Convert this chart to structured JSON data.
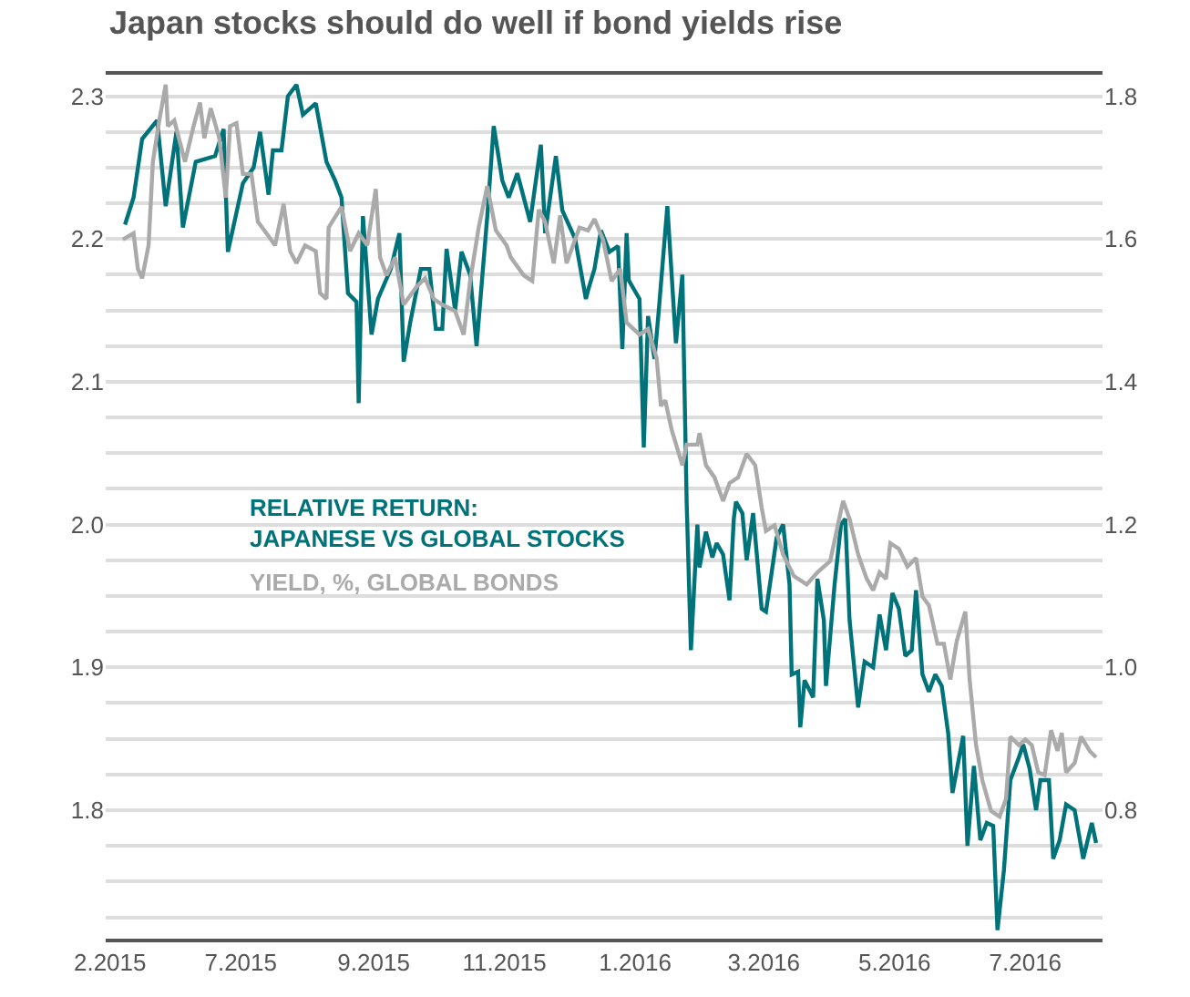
{
  "chart_data": {
    "type": "line",
    "title": "Japan stocks should do well if bond yields rise",
    "xlim": [
      "2015-04-29",
      "2016-08-06"
    ],
    "xticks": [
      {
        "value": "2015-05-01",
        "label": "2.2015"
      },
      {
        "value": "2015-07-01",
        "label": "7.2015"
      },
      {
        "value": "2015-09-01",
        "label": "9.2015"
      },
      {
        "value": "2015-11-01",
        "label": "11.2015"
      },
      {
        "value": "2016-01-01",
        "label": "1.2016"
      },
      {
        "value": "2016-03-01",
        "label": "3.2016"
      },
      {
        "value": "2016-05-01",
        "label": "5.2016"
      },
      {
        "value": "2016-07-01",
        "label": "7.2016"
      }
    ],
    "ylim": [
      1.71,
      2.315
    ],
    "yticks": [
      {
        "value": 1.725,
        "label": null
      },
      {
        "value": 1.75,
        "label": null
      },
      {
        "value": 1.775,
        "label": null
      },
      1.8,
      {
        "value": 1.825,
        "label": null
      },
      {
        "value": 1.85,
        "label": null
      },
      {
        "value": 1.875,
        "label": null
      },
      1.9,
      {
        "value": 1.925,
        "label": null
      },
      {
        "value": 1.95,
        "label": null
      },
      {
        "value": 1.975,
        "label": null
      },
      {
        "value": 2,
        "label": "2.0"
      },
      {
        "value": 2.025,
        "label": null
      },
      {
        "value": 2.05,
        "label": null
      },
      {
        "value": 2.075,
        "label": null
      },
      2.1,
      {
        "value": 2.125,
        "label": null
      },
      {
        "value": 2.15,
        "label": null
      },
      {
        "value": 2.175,
        "label": null
      },
      2.2,
      {
        "value": 2.225,
        "label": null
      },
      {
        "value": 2.25,
        "label": null
      },
      {
        "value": 2.275,
        "label": null
      },
      2.3
    ],
    "y2lim": [
      0.62,
      1.83
    ],
    "y2ticks": [
      0.8,
      {
        "value": 1,
        "label": "1.0"
      },
      1.2,
      1.4,
      1.6,
      1.8
    ],
    "grid": "y",
    "legend": false,
    "marker": "none",
    "line_style": "solid",
    "series": [
      {
        "name": "RELATIVE RETURN:\nJAPANESE VS GLOBAL STOCKS",
        "color": "#00737a",
        "x": [
          "2015-05-08",
          "2015-05-12",
          "2015-05-16",
          "2015-05-23",
          "2015-05-27",
          "2015-06-01",
          "2015-06-04",
          "2015-06-10",
          "2015-06-19",
          "2015-06-23",
          "2015-06-25",
          "2015-07-02",
          "2015-07-07",
          "2015-07-10",
          "2015-07-14",
          "2015-07-16",
          "2015-07-20",
          "2015-07-23",
          "2015-07-27",
          "2015-07-30",
          "2015-08-05",
          "2015-08-10",
          "2015-08-14",
          "2015-08-17",
          "2015-08-20",
          "2015-08-24",
          "2015-08-25",
          "2015-08-27",
          "2015-08-31",
          "2015-09-03",
          "2015-09-09",
          "2015-09-13",
          "2015-09-15",
          "2015-09-18",
          "2015-09-23",
          "2015-09-27",
          "2015-09-30",
          "2015-10-03",
          "2015-10-05",
          "2015-10-09",
          "2015-10-12",
          "2015-10-16",
          "2015-10-19",
          "2015-10-24",
          "2015-10-27",
          "2015-10-31",
          "2015-11-03",
          "2015-11-07",
          "2015-11-13",
          "2015-11-18",
          "2015-11-20",
          "2015-11-25",
          "2015-11-28",
          "2015-12-04",
          "2015-12-09",
          "2015-12-10",
          "2015-12-13",
          "2015-12-16",
          "2015-12-20",
          "2015-12-24",
          "2015-12-26",
          "2015-12-28",
          "2015-12-29",
          "2016-01-03",
          "2016-01-05",
          "2016-01-07",
          "2016-01-10",
          "2016-01-12",
          "2016-01-16",
          "2016-01-20",
          "2016-01-23",
          "2016-01-25",
          "2016-01-27",
          "2016-01-30",
          "2016-01-31",
          "2016-02-03",
          "2016-02-06",
          "2016-02-08",
          "2016-02-11",
          "2016-02-14",
          "2016-02-16",
          "2016-02-17",
          "2016-02-20",
          "2016-02-22",
          "2016-02-25",
          "2016-02-29",
          "2016-03-02",
          "2016-03-05",
          "2016-03-07",
          "2016-03-10",
          "2016-03-13",
          "2016-03-14",
          "2016-03-17",
          "2016-03-18",
          "2016-03-20",
          "2016-03-24",
          "2016-03-26",
          "2016-03-29",
          "2016-03-30",
          "2016-04-03",
          "2016-04-06",
          "2016-04-08",
          "2016-04-10",
          "2016-04-14",
          "2016-04-17",
          "2016-04-21",
          "2016-04-24",
          "2016-04-27",
          "2016-04-30",
          "2016-05-03",
          "2016-05-06",
          "2016-05-09",
          "2016-05-11",
          "2016-05-14",
          "2016-05-17",
          "2016-05-20",
          "2016-05-23",
          "2016-05-26",
          "2016-05-28",
          "2016-06-02",
          "2016-06-04",
          "2016-06-07",
          "2016-06-10",
          "2016-06-13",
          "2016-06-16",
          "2016-06-18",
          "2016-06-21",
          "2016-06-24",
          "2016-06-28",
          "2016-06-30",
          "2016-07-03",
          "2016-07-06",
          "2016-07-08",
          "2016-07-12",
          "2016-07-14",
          "2016-07-17",
          "2016-07-20",
          "2016-07-24",
          "2016-07-28",
          "2016-08-01",
          "2016-08-03"
        ],
        "values": [
          2.21,
          2.229,
          2.27,
          2.283,
          2.223,
          2.275,
          2.208,
          2.254,
          2.258,
          2.277,
          2.191,
          2.239,
          2.25,
          2.275,
          2.231,
          2.262,
          2.262,
          2.3,
          2.308,
          2.287,
          2.295,
          2.254,
          2.241,
          2.229,
          2.162,
          2.156,
          2.085,
          2.216,
          2.133,
          2.158,
          2.179,
          2.204,
          2.114,
          2.141,
          2.179,
          2.179,
          2.137,
          2.137,
          2.193,
          2.15,
          2.191,
          2.175,
          2.125,
          2.216,
          2.279,
          2.241,
          2.229,
          2.246,
          2.212,
          2.266,
          2.204,
          2.258,
          2.22,
          2.2,
          2.158,
          2.164,
          2.179,
          2.206,
          2.191,
          2.195,
          2.123,
          2.204,
          2.171,
          2.158,
          2.054,
          2.146,
          2.116,
          2.15,
          2.223,
          2.127,
          2.175,
          2.016,
          1.912,
          2.0,
          1.97,
          1.995,
          1.977,
          1.987,
          1.979,
          1.947,
          2.004,
          2.016,
          2.008,
          1.975,
          2.008,
          1.941,
          1.939,
          1.97,
          1.991,
          2.0,
          1.958,
          1.895,
          1.897,
          1.858,
          1.891,
          1.879,
          1.962,
          1.933,
          1.887,
          1.958,
          2.0,
          2.004,
          1.933,
          1.872,
          1.904,
          1.9,
          1.937,
          1.912,
          1.952,
          1.941,
          1.908,
          1.912,
          1.954,
          1.895,
          1.883,
          1.895,
          1.887,
          1.854,
          1.812,
          1.852,
          1.775,
          1.831,
          1.779,
          1.791,
          1.789,
          1.716,
          1.758,
          1.821,
          1.837,
          1.846,
          1.829,
          1.8,
          1.821,
          1.821,
          1.766,
          1.779,
          1.804,
          1.8,
          1.766,
          1.791,
          1.777
        ]
      },
      {
        "name": "YIELD, %, GLOBAL BONDS",
        "color": "#aaaaaa",
        "axis": "y2",
        "x": [
          "2015-05-07",
          "2015-05-12",
          "2015-05-14",
          "2015-05-16",
          "2015-05-19",
          "2015-05-21",
          "2015-05-24",
          "2015-05-27",
          "2015-05-28",
          "2015-05-31",
          "2015-06-05",
          "2015-06-09",
          "2015-06-12",
          "2015-06-14",
          "2015-06-17",
          "2015-06-21",
          "2015-06-24",
          "2015-06-26",
          "2015-06-29",
          "2015-07-02",
          "2015-07-06",
          "2015-07-09",
          "2015-07-13",
          "2015-07-17",
          "2015-07-21",
          "2015-07-24",
          "2015-07-27",
          "2015-07-31",
          "2015-08-05",
          "2015-08-07",
          "2015-08-10",
          "2015-08-11",
          "2015-08-17",
          "2015-08-21",
          "2015-08-25",
          "2015-08-29",
          "2015-09-02",
          "2015-09-04",
          "2015-09-07",
          "2015-09-11",
          "2015-09-15",
          "2015-09-21",
          "2015-09-25",
          "2015-09-29",
          "2015-10-03",
          "2015-10-09",
          "2015-10-13",
          "2015-10-16",
          "2015-10-20",
          "2015-10-24",
          "2015-10-28",
          "2015-11-02",
          "2015-11-04",
          "2015-11-10",
          "2015-11-14",
          "2015-11-17",
          "2015-11-20",
          "2015-11-24",
          "2015-11-27",
          "2015-11-30",
          "2015-12-06",
          "2015-12-10",
          "2015-12-13",
          "2015-12-17",
          "2015-12-21",
          "2015-12-25",
          "2015-12-28",
          "2016-01-03",
          "2016-01-07",
          "2016-01-11",
          "2016-01-13",
          "2016-01-15",
          "2016-01-18",
          "2016-01-23",
          "2016-01-25",
          "2016-01-30",
          "2016-01-31",
          "2016-02-03",
          "2016-02-07",
          "2016-02-11",
          "2016-02-14",
          "2016-02-18",
          "2016-02-22",
          "2016-02-26",
          "2016-02-29",
          "2016-03-02",
          "2016-03-06",
          "2016-03-10",
          "2016-03-15",
          "2016-03-21",
          "2016-03-26",
          "2016-04-01",
          "2016-04-06",
          "2016-04-07",
          "2016-04-10",
          "2016-04-14",
          "2016-04-18",
          "2016-04-21",
          "2016-04-24",
          "2016-04-27",
          "2016-04-29",
          "2016-05-03",
          "2016-05-07",
          "2016-05-11",
          "2016-05-14",
          "2016-05-17",
          "2016-05-21",
          "2016-05-24",
          "2016-05-27",
          "2016-05-30",
          "2016-06-03",
          "2016-06-05",
          "2016-06-08",
          "2016-06-11",
          "2016-06-15",
          "2016-06-19",
          "2016-06-22",
          "2016-06-24",
          "2016-06-28",
          "2016-07-01",
          "2016-07-04",
          "2016-07-07",
          "2016-07-10",
          "2016-07-13",
          "2016-07-16",
          "2016-07-18",
          "2016-07-20",
          "2016-07-24",
          "2016-07-27",
          "2016-07-31",
          "2016-08-03"
        ],
        "values": [
          1.599,
          1.608,
          1.558,
          1.545,
          1.591,
          1.708,
          1.766,
          1.816,
          1.758,
          1.766,
          1.708,
          1.758,
          1.791,
          1.741,
          1.783,
          1.741,
          1.658,
          1.758,
          1.762,
          1.691,
          1.691,
          1.624,
          1.608,
          1.591,
          1.649,
          1.583,
          1.566,
          1.591,
          1.583,
          1.524,
          1.516,
          1.616,
          1.645,
          1.583,
          1.608,
          1.591,
          1.67,
          1.574,
          1.549,
          1.574,
          1.508,
          1.533,
          1.545,
          1.516,
          1.508,
          1.499,
          1.466,
          1.541,
          1.616,
          1.674,
          1.612,
          1.591,
          1.574,
          1.549,
          1.541,
          1.641,
          1.624,
          1.566,
          1.633,
          1.566,
          1.616,
          1.612,
          1.628,
          1.599,
          1.541,
          1.558,
          1.483,
          1.466,
          1.474,
          1.433,
          1.366,
          1.374,
          1.333,
          1.283,
          1.312,
          1.312,
          1.328,
          1.283,
          1.266,
          1.233,
          1.258,
          1.266,
          1.299,
          1.283,
          1.224,
          1.191,
          1.199,
          1.158,
          1.128,
          1.116,
          1.133,
          1.149,
          1.22,
          1.233,
          1.208,
          1.158,
          1.124,
          1.108,
          1.133,
          1.124,
          1.174,
          1.166,
          1.141,
          1.153,
          1.099,
          1.087,
          1.033,
          1.033,
          0.983,
          1.037,
          1.078,
          0.983,
          0.891,
          0.841,
          0.799,
          0.791,
          0.816,
          0.903,
          0.891,
          0.899,
          0.891,
          0.853,
          0.849,
          0.912,
          0.883,
          0.908,
          0.853,
          0.866,
          0.903,
          0.883,
          0.874
        ]
      }
    ]
  }
}
